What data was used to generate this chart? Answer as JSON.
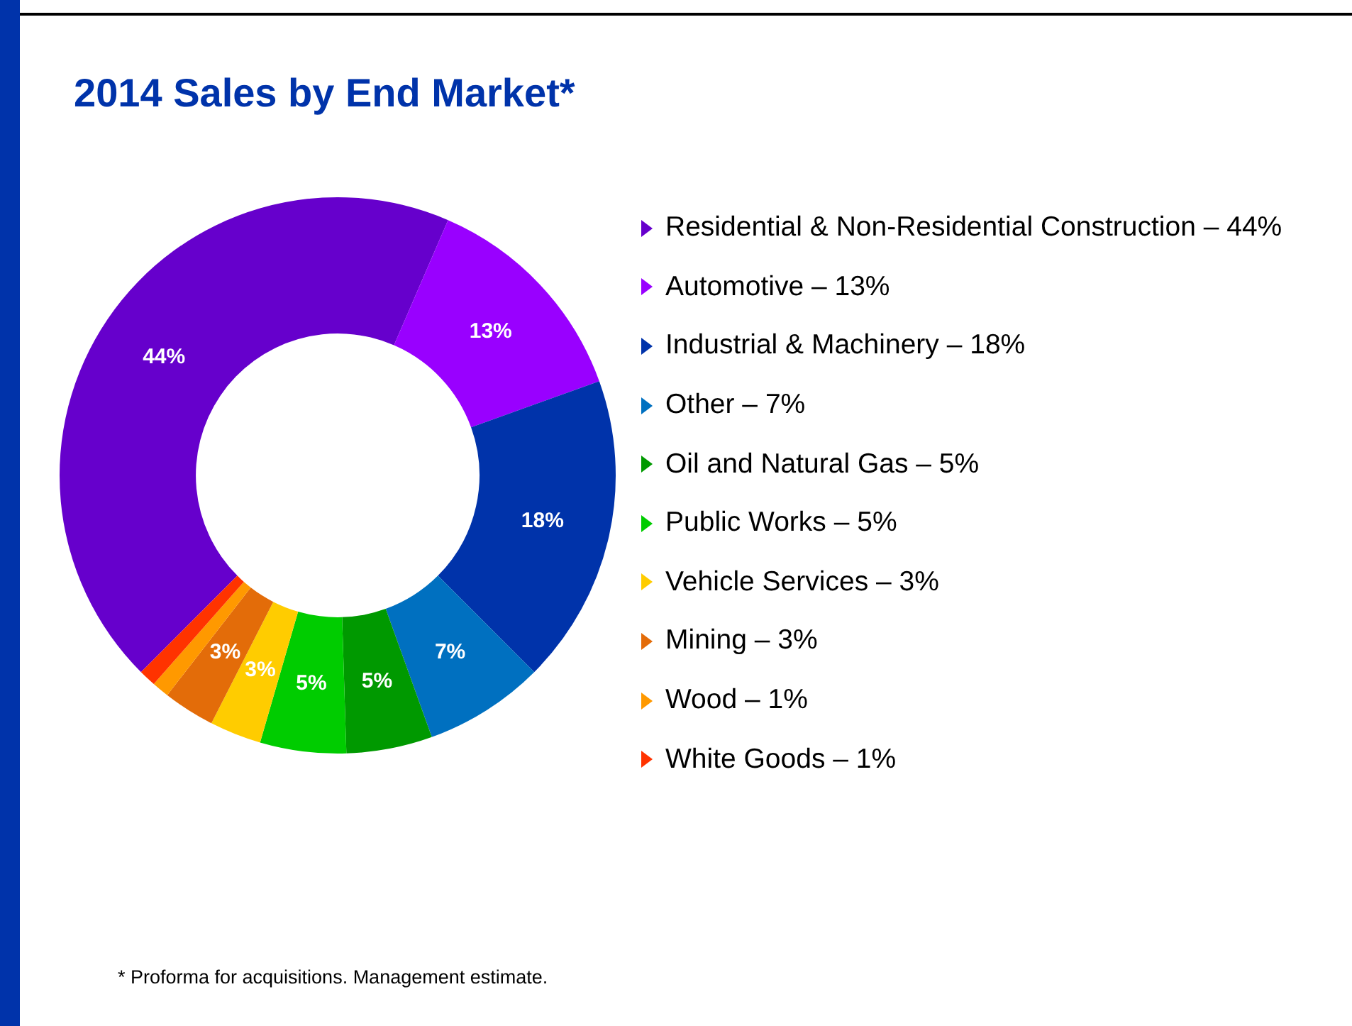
{
  "chart_data": {
    "type": "donut",
    "title": "2014 Sales by End Market*",
    "categories": [
      "Residential & Non-Residential Construction – 44%",
      "Automotive – 13%",
      "Industrial & Machinery – 18%",
      "Other – 7%",
      "Oil and Natural Gas – 5%",
      "Public Works – 5%",
      "Vehicle Services – 3%",
      "Mining – 3%",
      "Wood – 1%",
      "White Goods – 1%"
    ],
    "values": [
      44,
      13,
      18,
      7,
      5,
      5,
      3,
      3,
      1,
      1
    ],
    "value_labels": [
      "44%",
      "13%",
      "18%",
      "7%",
      "5%",
      "5%",
      "3%",
      "3%",
      null,
      null
    ],
    "colors": [
      "#6600cc",
      "#9900ff",
      "#0033aa",
      "#0070c0",
      "#009900",
      "#00cc00",
      "#ffcc00",
      "#e36c09",
      "#ff9900",
      "#ff3300"
    ],
    "legend": "right",
    "annotations": [
      "* Proforma for acquisitions. Management estimate."
    ]
  }
}
